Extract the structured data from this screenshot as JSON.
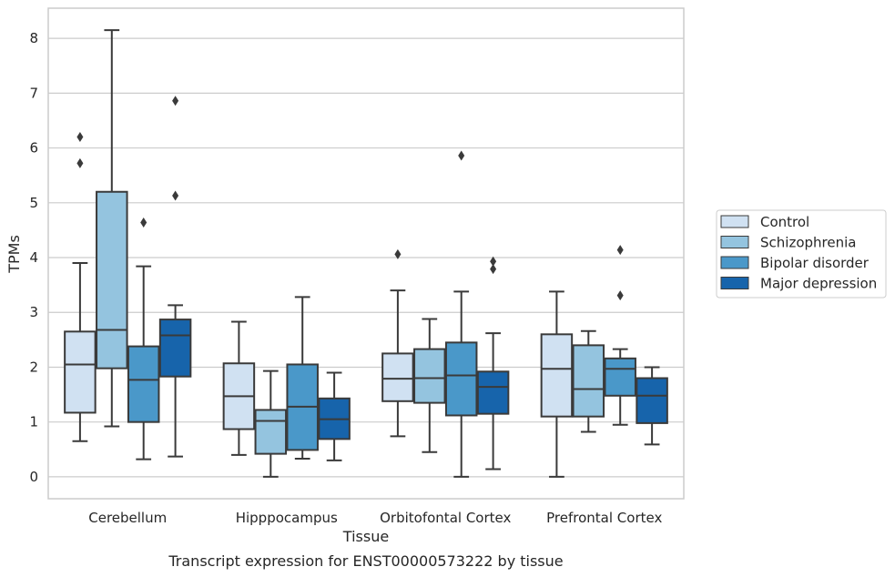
{
  "chart_data": {
    "type": "box",
    "xlabel": "Tissue",
    "ylabel": "TPMs",
    "caption": "Transcript expression for ENST00000573222 by tissue",
    "categories": [
      "Cerebellum",
      "Hipppocampus",
      "Orbitofontal Cortex",
      "Prefrontal Cortex"
    ],
    "ylim": [
      -0.4,
      8.55
    ],
    "yticks": [
      "0",
      "1",
      "2",
      "3",
      "4",
      "5",
      "6",
      "7",
      "8"
    ],
    "grid": true,
    "legend_position": "right",
    "series": [
      {
        "name": "Control",
        "color": "#d0e1f2",
        "boxes": [
          {
            "whislo": 0.65,
            "q1": 1.17,
            "med": 2.05,
            "q3": 2.65,
            "whishi": 3.9,
            "fliers": [
              5.72,
              6.2
            ]
          },
          {
            "whislo": 0.4,
            "q1": 0.87,
            "med": 1.47,
            "q3": 2.07,
            "whishi": 2.83,
            "fliers": []
          },
          {
            "whislo": 0.74,
            "q1": 1.38,
            "med": 1.79,
            "q3": 2.25,
            "whishi": 3.4,
            "fliers": [
              4.06
            ]
          },
          {
            "whislo": 0.0,
            "q1": 1.1,
            "med": 1.97,
            "q3": 2.6,
            "whishi": 3.38,
            "fliers": []
          }
        ]
      },
      {
        "name": "Schizophrenia",
        "color": "#94c4df",
        "boxes": [
          {
            "whislo": 0.92,
            "q1": 1.98,
            "med": 2.68,
            "q3": 5.2,
            "whishi": 8.15,
            "fliers": []
          },
          {
            "whislo": 0.0,
            "q1": 0.42,
            "med": 1.02,
            "q3": 1.22,
            "whishi": 1.93,
            "fliers": []
          },
          {
            "whislo": 0.45,
            "q1": 1.35,
            "med": 1.8,
            "q3": 2.33,
            "whishi": 2.88,
            "fliers": []
          },
          {
            "whislo": 0.82,
            "q1": 1.1,
            "med": 1.6,
            "q3": 2.4,
            "whishi": 2.66,
            "fliers": []
          }
        ]
      },
      {
        "name": "Bipolar disorder",
        "color": "#4a98c9",
        "boxes": [
          {
            "whislo": 0.32,
            "q1": 1.0,
            "med": 1.77,
            "q3": 2.38,
            "whishi": 3.84,
            "fliers": [
              4.64
            ]
          },
          {
            "whislo": 0.33,
            "q1": 0.49,
            "med": 1.28,
            "q3": 2.05,
            "whishi": 3.28,
            "fliers": []
          },
          {
            "whislo": 0.0,
            "q1": 1.12,
            "med": 1.85,
            "q3": 2.45,
            "whishi": 3.38,
            "fliers": [
              5.86
            ]
          },
          {
            "whislo": 0.95,
            "q1": 1.48,
            "med": 1.97,
            "q3": 2.16,
            "whishi": 2.33,
            "fliers": [
              3.31,
              4.14
            ]
          }
        ]
      },
      {
        "name": "Major depression",
        "color": "#1764ab",
        "boxes": [
          {
            "whislo": 0.37,
            "q1": 1.83,
            "med": 2.58,
            "q3": 2.87,
            "whishi": 3.13,
            "fliers": [
              5.13,
              6.86
            ]
          },
          {
            "whislo": 0.3,
            "q1": 0.69,
            "med": 1.05,
            "q3": 1.43,
            "whishi": 1.9,
            "fliers": []
          },
          {
            "whislo": 0.14,
            "q1": 1.15,
            "med": 1.64,
            "q3": 1.92,
            "whishi": 2.62,
            "fliers": [
              3.79,
              3.93
            ]
          },
          {
            "whislo": 0.59,
            "q1": 0.98,
            "med": 1.48,
            "q3": 1.8,
            "whishi": 2.0,
            "fliers": []
          }
        ]
      }
    ]
  }
}
